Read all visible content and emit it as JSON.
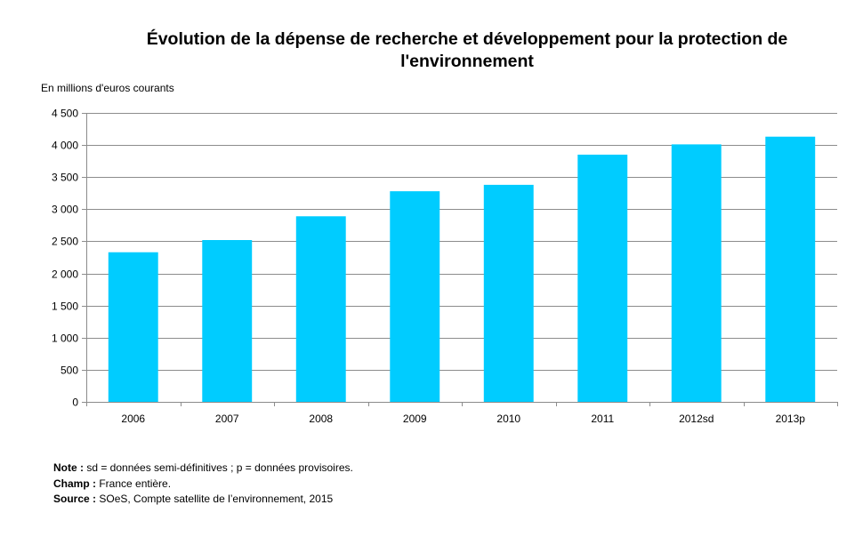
{
  "chart_data": {
    "type": "bar",
    "title": "Évolution de la dépense de recherche et développement pour la protection de l'environnement",
    "ylabel": "En millions d'euros courants",
    "xlabel": "",
    "categories": [
      "2006",
      "2007",
      "2008",
      "2009",
      "2010",
      "2011",
      "2012sd",
      "2013p"
    ],
    "values": [
      2330,
      2520,
      2890,
      3280,
      3380,
      3850,
      4010,
      4130
    ],
    "ylim": [
      0,
      4500
    ],
    "yticks": [
      0,
      500,
      1000,
      1500,
      2000,
      2500,
      3000,
      3500,
      4000,
      4500
    ],
    "ytick_labels": [
      "0",
      "500",
      "1 000",
      "1 500",
      "2 000",
      "2 500",
      "3 000",
      "3 500",
      "4 000",
      "4 500"
    ],
    "grid": true,
    "bar_color": "#00CCFF"
  },
  "notes": {
    "note_label": "Note :",
    "note_text": " sd = données semi-définitives ; p = données provisoires.",
    "champ_label": "Champ :",
    "champ_text": " France entière.",
    "source_label": "Source :",
    "source_text": " SOeS, Compte satellite de l’environnement, 2015"
  }
}
